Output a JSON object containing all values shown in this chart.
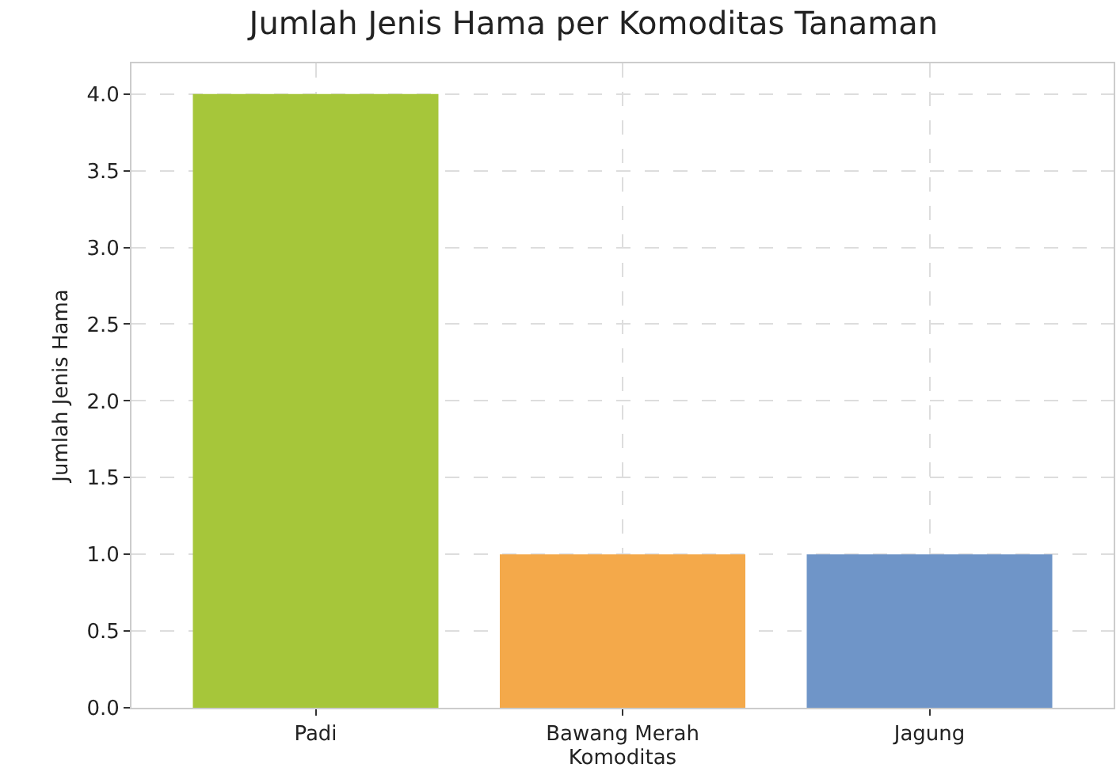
{
  "chart_data": {
    "type": "bar",
    "title": "Jumlah Jenis Hama per Komoditas Tanaman",
    "xlabel": "Komoditas",
    "ylabel": "Jumlah Jenis Hama",
    "categories": [
      "Padi",
      "Bawang Merah",
      "Jagung"
    ],
    "values": [
      4,
      1,
      1
    ],
    "colors": [
      "#a6c63a",
      "#f4a94a",
      "#6f95c8"
    ],
    "ylim": [
      0,
      4.2
    ],
    "yticks": [
      {
        "value": 0,
        "label": "0.0"
      },
      {
        "value": 0.5,
        "label": "0.5"
      },
      {
        "value": 1,
        "label": "1.0"
      },
      {
        "value": 1.5,
        "label": "1.5"
      },
      {
        "value": 2,
        "label": "2.0"
      },
      {
        "value": 2.5,
        "label": "2.5"
      },
      {
        "value": 3,
        "label": "3.0"
      },
      {
        "value": 3.5,
        "label": "3.5"
      },
      {
        "value": 4,
        "label": "4.0"
      }
    ],
    "grid": true
  }
}
